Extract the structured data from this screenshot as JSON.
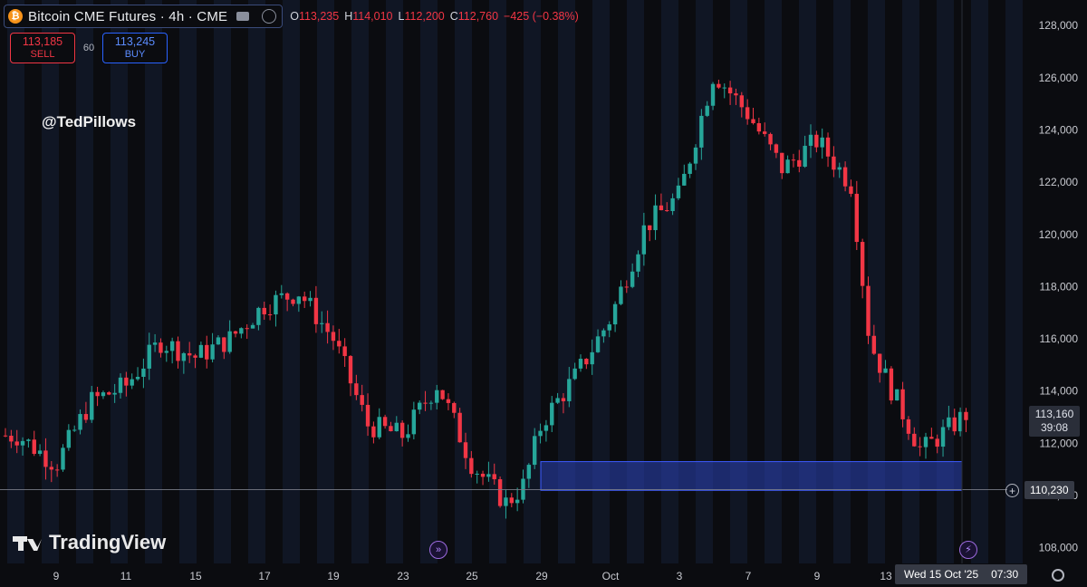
{
  "header": {
    "title": "Bitcoin CME Futures · 4h · CME",
    "coin_glyph": "₿",
    "ohlc": [
      {
        "key": "O",
        "value": "113,235"
      },
      {
        "key": "H",
        "value": "114,010"
      },
      {
        "key": "L",
        "value": "112,200"
      },
      {
        "key": "C",
        "value": "112,760"
      }
    ],
    "change": "−425 (−0.38%)"
  },
  "trade": {
    "sell_price": "113,185",
    "sell_label": "SELL",
    "qty": "60",
    "buy_price": "113,245",
    "buy_label": "BUY"
  },
  "watermark": "@TedPillows",
  "logo_text": "TradingView",
  "price_tag": {
    "price": "113,160",
    "countdown": "39:08"
  },
  "crosshair": {
    "price": "110,230",
    "time": "Wed 15 Oct '25",
    "clock": "07:30"
  },
  "colors": {
    "up": "#26a69a",
    "down": "#f23645",
    "zone": "#2c43b8",
    "background": "#0b0c10",
    "session_band": "#101624"
  },
  "chart_data": {
    "type": "candlestick",
    "title": "Bitcoin CME Futures · 4h · CME",
    "y_ticks": [
      108000,
      110000,
      112000,
      114000,
      116000,
      118000,
      120000,
      122000,
      124000,
      126000,
      128000
    ],
    "x_ticks": [
      "9",
      "11",
      "15",
      "17",
      "19",
      "23",
      "25",
      "29",
      "Oct",
      "3",
      "7",
      "9",
      "13"
    ],
    "ylim": [
      107400,
      128700
    ],
    "grid": false,
    "highlight_zone": {
      "y_from": 110200,
      "y_to": 111300
    },
    "crosshair_price": 110230,
    "anchors": [
      {
        "d": "Sep 8",
        "c": 112300
      },
      {
        "d": "Sep 9",
        "c": 111200
      },
      {
        "d": "Sep 10",
        "c": 113600
      },
      {
        "d": "Sep 11",
        "c": 114200
      },
      {
        "d": "Sep 12",
        "c": 115900
      },
      {
        "d": "Sep 15",
        "c": 115300
      },
      {
        "d": "Sep 16",
        "c": 116000
      },
      {
        "d": "Sep 17",
        "c": 117300
      },
      {
        "d": "Sep 18",
        "c": 117800
      },
      {
        "d": "Sep 19",
        "c": 116000
      },
      {
        "d": "Sep 22",
        "c": 112700
      },
      {
        "d": "Sep 23",
        "c": 112300
      },
      {
        "d": "Sep 24",
        "c": 114300
      },
      {
        "d": "Sep 25",
        "c": 111200
      },
      {
        "d": "Sep 26",
        "c": 109700
      },
      {
        "d": "Sep 28",
        "c": 110400
      },
      {
        "d": "Sep 29",
        "c": 112800
      },
      {
        "d": "Sep 30",
        "c": 114600
      },
      {
        "d": "Oct 1",
        "c": 116800
      },
      {
        "d": "Oct 2",
        "c": 120300
      },
      {
        "d": "Oct 3",
        "c": 121500
      },
      {
        "d": "Oct 6",
        "c": 126200
      },
      {
        "d": "Oct 7",
        "c": 124600
      },
      {
        "d": "Oct 8",
        "c": 122500
      },
      {
        "d": "Oct 9",
        "c": 123600
      },
      {
        "d": "Oct 10",
        "c": 121900
      },
      {
        "d": "Oct 12",
        "c": 115900
      },
      {
        "d": "Oct 13",
        "c": 114500
      },
      {
        "d": "Oct 14",
        "c": 111700
      },
      {
        "d": "Oct 15",
        "c": 113160
      }
    ]
  }
}
